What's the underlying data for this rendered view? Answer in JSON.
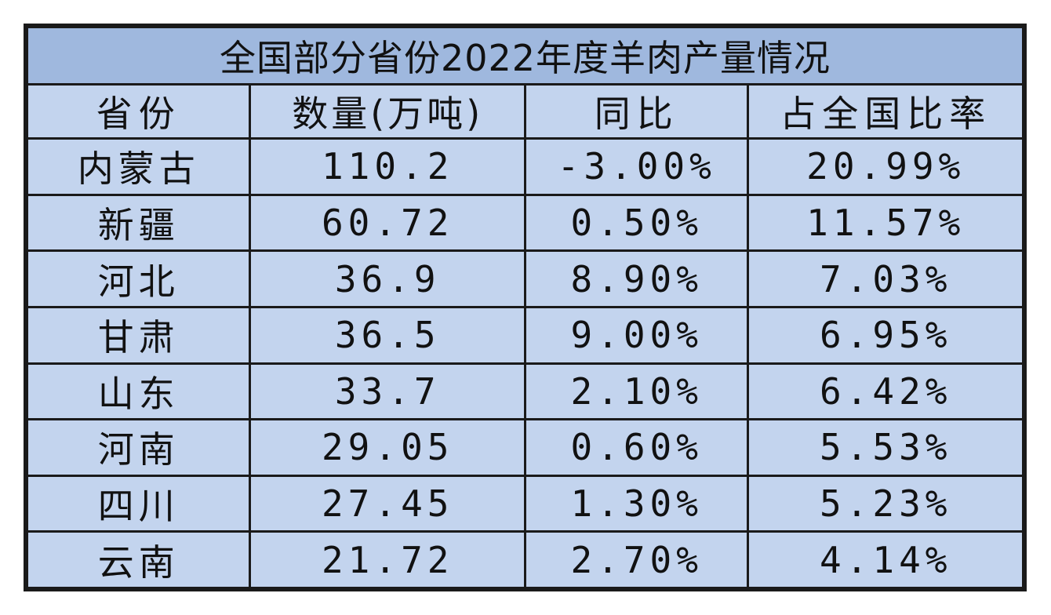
{
  "chart_data": {
    "type": "table",
    "title": "全国部分省份2022年度羊肉产量情况",
    "columns": [
      "省份",
      "数量(万吨)",
      "同比",
      "占全国比率"
    ],
    "rows": [
      [
        "内蒙古",
        "110.2",
        "-3.00%",
        "20.99%"
      ],
      [
        "新疆",
        "60.72",
        "0.50%",
        "11.57%"
      ],
      [
        "河北",
        "36.9",
        "8.90%",
        "7.03%"
      ],
      [
        "甘肃",
        "36.5",
        "9.00%",
        "6.95%"
      ],
      [
        "山东",
        "33.7",
        "2.10%",
        "6.42%"
      ],
      [
        "河南",
        "29.05",
        "0.60%",
        "5.53%"
      ],
      [
        "四川",
        "27.45",
        "1.30%",
        "5.23%"
      ],
      [
        "云南",
        "21.72",
        "2.70%",
        "4.14%"
      ]
    ]
  },
  "colors": {
    "title_background": "#9fb8de",
    "cell_background": "#c3d4ee",
    "border": "#1a1a1a",
    "text": "#111111"
  }
}
